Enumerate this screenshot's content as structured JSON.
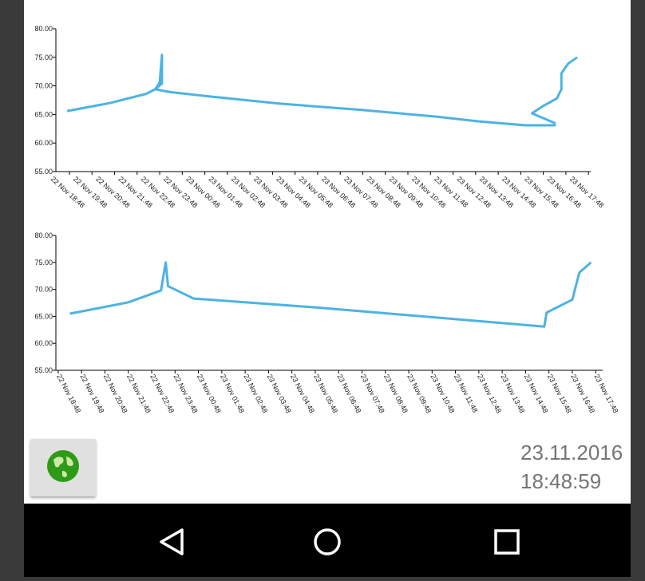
{
  "chart_data": [
    {
      "type": "line",
      "x": [
        -0.1,
        1.8,
        2.6,
        3.4,
        3.8,
        4.1,
        4.1,
        4.0,
        3.8,
        4.5,
        6.1,
        9.3,
        12.9,
        16.3,
        18.1,
        20.2,
        21.5,
        21.5,
        20.5,
        21.0,
        21.6,
        21.8,
        21.8,
        22.1,
        22.5
      ],
      "values": [
        65.6,
        67.0,
        67.8,
        68.6,
        69.4,
        70.4,
        75.4,
        70.6,
        69.4,
        68.9,
        68.2,
        66.9,
        65.8,
        64.6,
        63.8,
        63.1,
        63.1,
        63.5,
        65.2,
        66.5,
        67.8,
        69.4,
        72.2,
        73.9,
        75.0
      ],
      "color": "#4db3e3",
      "xlim": [
        -0.6,
        23.1
      ],
      "ylim": [
        55,
        80
      ],
      "yticks": [
        {
          "value": 55,
          "label": "55.00"
        },
        {
          "value": 60,
          "label": "60.00"
        },
        {
          "value": 65,
          "label": "65.00"
        },
        {
          "value": 70,
          "label": "70.00"
        },
        {
          "value": 75,
          "label": "75.00"
        },
        {
          "value": 80,
          "label": "80.00"
        }
      ],
      "xticks": [
        {
          "value": 0,
          "label": "22 Nov 18:48"
        },
        {
          "value": 1,
          "label": "22 Nov 19:48"
        },
        {
          "value": 2,
          "label": "22 Nov 20:48"
        },
        {
          "value": 3,
          "label": "22 Nov 21:48"
        },
        {
          "value": 4,
          "label": "22 Nov 22:48"
        },
        {
          "value": 5,
          "label": "22 Nov 23:48"
        },
        {
          "value": 6,
          "label": "23 Nov 00:48"
        },
        {
          "value": 7,
          "label": "23 Nov 01:48"
        },
        {
          "value": 8,
          "label": "23 Nov 02:48"
        },
        {
          "value": 9,
          "label": "23 Nov 03:48"
        },
        {
          "value": 10,
          "label": "23 Nov 04:48"
        },
        {
          "value": 11,
          "label": "23 Nov 05:48"
        },
        {
          "value": 12,
          "label": "23 Nov 06:48"
        },
        {
          "value": 13,
          "label": "23 Nov 07:48"
        },
        {
          "value": 14,
          "label": "23 Nov 08:48"
        },
        {
          "value": 15,
          "label": "23 Nov 09:48"
        },
        {
          "value": 16,
          "label": "23 Nov 10:48"
        },
        {
          "value": 17,
          "label": "23 Nov 11:48"
        },
        {
          "value": 18,
          "label": "23 Nov 12:48"
        },
        {
          "value": 19,
          "label": "23 Nov 13:48"
        },
        {
          "value": 20,
          "label": "23 Nov 14:48"
        },
        {
          "value": 21,
          "label": "23 Nov 15:48"
        },
        {
          "value": 22,
          "label": "23 Nov 16:48"
        },
        {
          "value": 23,
          "label": "23 Nov 17:48"
        }
      ]
    },
    {
      "type": "line",
      "x": [
        0.5,
        3.0,
        4.4,
        4.6,
        4.7,
        5.8,
        11.2,
        20.8,
        20.9,
        22.0,
        22.3,
        22.8
      ],
      "values": [
        65.5,
        67.6,
        69.8,
        75.0,
        70.6,
        68.3,
        66.6,
        63.1,
        65.7,
        68.1,
        73.1,
        75.0
      ],
      "color": "#4db3e3",
      "xlim": [
        -0.1,
        23.3
      ],
      "ylim": [
        55,
        80
      ],
      "yticks": [
        {
          "value": 55,
          "label": "55.00"
        },
        {
          "value": 60,
          "label": "60.00"
        },
        {
          "value": 65,
          "label": "65.00"
        },
        {
          "value": 70,
          "label": "70.00"
        },
        {
          "value": 75,
          "label": "75.00"
        },
        {
          "value": 80,
          "label": "80.00"
        }
      ],
      "xticks": [
        {
          "value": 0,
          "label": "22 Nov 18:48"
        },
        {
          "value": 1,
          "label": "22 Nov 19:48"
        },
        {
          "value": 2,
          "label": "22 Nov 20:48"
        },
        {
          "value": 3,
          "label": "22 Nov 21:48"
        },
        {
          "value": 4,
          "label": "22 Nov 22:48"
        },
        {
          "value": 5,
          "label": "22 Nov 23:48"
        },
        {
          "value": 6,
          "label": "23 Nov 00:48"
        },
        {
          "value": 7,
          "label": "23 Nov 01:48"
        },
        {
          "value": 8,
          "label": "23 Nov 02:48"
        },
        {
          "value": 9,
          "label": "23 Nov 03:48"
        },
        {
          "value": 10,
          "label": "23 Nov 04:48"
        },
        {
          "value": 11,
          "label": "23 Nov 05:48"
        },
        {
          "value": 12,
          "label": "23 Nov 06:48"
        },
        {
          "value": 13,
          "label": "23 Nov 07:48"
        },
        {
          "value": 14,
          "label": "23 Nov 08:48"
        },
        {
          "value": 15,
          "label": "23 Nov 09:48"
        },
        {
          "value": 16,
          "label": "23 Nov 10:48"
        },
        {
          "value": 17,
          "label": "23 Nov 11:48"
        },
        {
          "value": 18,
          "label": "23 Nov 12:48"
        },
        {
          "value": 19,
          "label": "23 Nov 13:48"
        },
        {
          "value": 20,
          "label": "23 Nov 14:48"
        },
        {
          "value": 21,
          "label": "23 Nov 15:48"
        },
        {
          "value": 22,
          "label": "23 Nov 16:48"
        },
        {
          "value": 23,
          "label": "23 Nov 17:48"
        }
      ]
    }
  ],
  "status": {
    "date": "23.11.2016",
    "time": "18:48:59"
  }
}
